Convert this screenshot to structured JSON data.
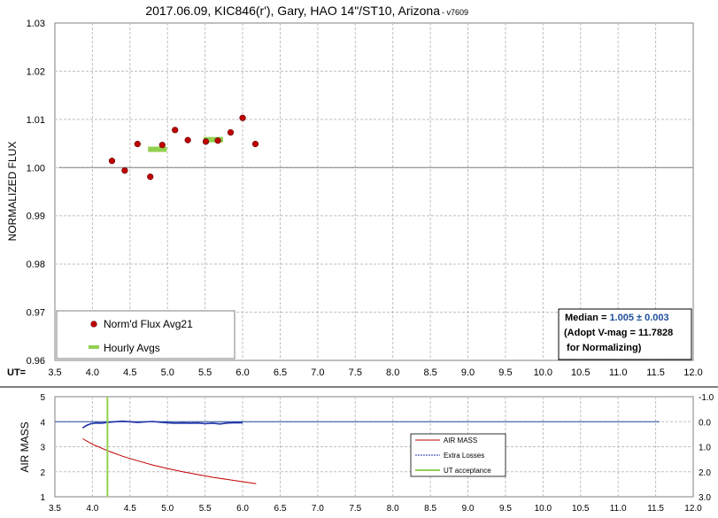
{
  "title": "2017.06.09, KIC846(r'), Gary, HAO 14\"/ST10, Arizona",
  "version": " - v7609",
  "chart_data": [
    {
      "type": "scatter",
      "ylabel": "NORMALIZED FLUX",
      "xlabel": "UT=",
      "xlim": [
        3.5,
        12.0
      ],
      "ylim": [
        0.96,
        1.03
      ],
      "x_ticks": [
        "3.5",
        "4.0",
        "4.5",
        "5.0",
        "5.5",
        "6.0",
        "6.5",
        "7.0",
        "7.5",
        "8.0",
        "8.5",
        "9.0",
        "9.5",
        "10.0",
        "10.5",
        "11.0",
        "11.5",
        "12.0"
      ],
      "y_ticks": [
        "1.03",
        "1.02",
        "1.01",
        "1.00",
        "0.99",
        "0.98",
        "0.97",
        "0.96"
      ],
      "grid": true,
      "reference_line": 1.0,
      "series": [
        {
          "name": "Norm'd Flux Avg21",
          "color": "#c00000",
          "marker": "circle",
          "x": [
            4.26,
            4.43,
            4.6,
            4.77,
            4.93,
            5.1,
            5.27,
            5.51,
            5.67,
            5.84,
            6.0,
            6.17
          ],
          "y": [
            1.0014,
            0.9994,
            1.0049,
            0.9981,
            1.0047,
            1.0078,
            1.0057,
            1.0054,
            1.0056,
            1.0073,
            1.0103,
            1.0049
          ]
        },
        {
          "name": "Hourly Avgs",
          "color": "#92d050",
          "marker": "bar",
          "segments": [
            {
              "x1": 4.74,
              "x2": 4.99,
              "y": 1.0038
            },
            {
              "x1": 5.48,
              "x2": 5.74,
              "y": 1.0058
            }
          ]
        }
      ],
      "legend_position": "bottom-left",
      "annotation": {
        "median_label": "Median = ",
        "median_value": "1.005 ± 0.003",
        "line2": "(Adopt V-mag = 11.7828",
        "line3": " for Normalizing)"
      }
    },
    {
      "type": "line",
      "ylabel": "AIR MASS",
      "xlim": [
        3.5,
        12.0
      ],
      "ylim": [
        1,
        5
      ],
      "y2lim": [
        -1.0,
        3.0
      ],
      "x_ticks": [
        "3.5",
        "4.0",
        "4.5",
        "5.0",
        "5.5",
        "6.0",
        "6.5",
        "7.0",
        "7.5",
        "8.0",
        "8.5",
        "9.0",
        "9.5",
        "10.0",
        "10.5",
        "11.0",
        "11.5",
        "12.0"
      ],
      "y_ticks": [
        "5",
        "4",
        "3",
        "2",
        "1"
      ],
      "y2_ticks": [
        "-1.0",
        "0.0",
        "1.0",
        "2.0",
        "3.0"
      ],
      "grid": true,
      "series": [
        {
          "name": "AIR MASS",
          "color": "#c00000",
          "x": [
            3.87,
            4.0,
            4.2,
            4.4,
            4.6,
            4.8,
            5.0,
            5.2,
            5.4,
            5.6,
            5.8,
            6.0,
            6.18
          ],
          "y": [
            3.32,
            3.1,
            2.84,
            2.62,
            2.44,
            2.27,
            2.13,
            2.0,
            1.89,
            1.78,
            1.69,
            1.6,
            1.52
          ]
        },
        {
          "name": "Extra Losses",
          "color": "#1f2fa8",
          "axis": "right",
          "x": [
            3.87,
            3.92,
            3.98,
            4.05,
            4.12,
            4.2,
            4.3,
            4.4,
            4.5,
            4.6,
            4.7,
            4.8,
            4.9,
            5.0,
            5.1,
            5.2,
            5.3,
            5.4,
            5.5,
            5.6,
            5.7,
            5.8,
            5.9,
            6.0
          ],
          "y": [
            0.25,
            0.15,
            0.08,
            0.05,
            0.06,
            0.03,
            0.0,
            -0.02,
            0.0,
            0.03,
            0.01,
            -0.01,
            0.02,
            0.04,
            0.06,
            0.05,
            0.06,
            0.05,
            0.08,
            0.06,
            0.09,
            0.05,
            0.04,
            0.04
          ]
        },
        {
          "name": "UT acceptance",
          "color": "#92d050",
          "type": "vline",
          "x": 4.2
        }
      ],
      "reference_line_right": 0.0,
      "reference_line_right_x_end": 11.55,
      "legend_position": "center-right"
    }
  ]
}
